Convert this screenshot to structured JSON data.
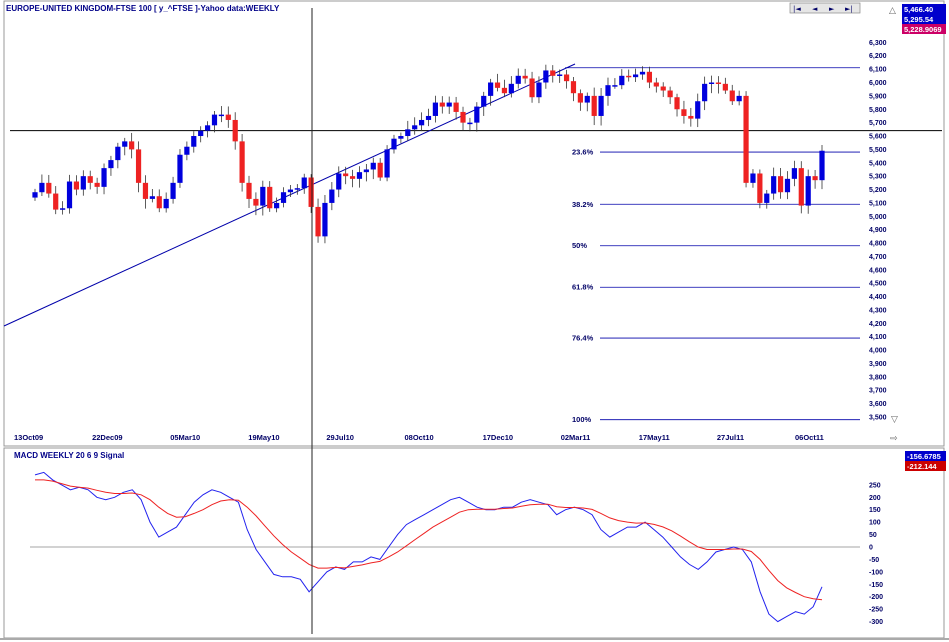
{
  "price_panel": {
    "title": "EUROPE-UNITED KINGDOM-FTSE 100 [ y_^FTSE ]-Yahoo data:WEEKLY",
    "readouts": [
      {
        "text": "5,466.40",
        "bg": "#0000cc"
      },
      {
        "text": "5,295.54",
        "bg": "#0000cc"
      },
      {
        "text": "5,228.9069",
        "bg": "#cc0066"
      }
    ],
    "nav_buttons": [
      "|◄",
      "◄",
      "►",
      "►|"
    ]
  },
  "macd_panel": {
    "title": "MACD WEEKLY 20 6 9 Signal",
    "readouts": [
      {
        "text": "-156.6785",
        "bg": "#0000cc"
      },
      {
        "text": "-212.144",
        "bg": "#cc0000"
      }
    ]
  },
  "colors": {
    "up": "#0000dd",
    "down": "#ee2222",
    "fib": "#0000aa",
    "macd": "#2222ee",
    "signal": "#ee2222"
  },
  "chart_data": [
    {
      "type": "candlestick",
      "title": "EUROPE-UNITED KINGDOM-FTSE 100 [ y_^FTSE ]-Yahoo data:WEEKLY",
      "x_tick_labels": [
        "13Oct09",
        "22Dec09",
        "05Mar10",
        "19May10",
        "29Jul10",
        "08Oct10",
        "17Dec10",
        "02Mar11",
        "17May11",
        "27Jul11",
        "06Oct11"
      ],
      "y_range": [
        3450,
        6400
      ],
      "y_ticks": [
        3500,
        3600,
        3700,
        3800,
        3900,
        4000,
        4100,
        4200,
        4300,
        4400,
        4500,
        4600,
        4700,
        4800,
        4900,
        5000,
        5100,
        5200,
        5300,
        5400,
        5500,
        5600,
        5700,
        5800,
        5900,
        6000,
        6100,
        6200,
        6300
      ],
      "y_tick_labels": [
        "3,500",
        "3,600",
        "3,700",
        "3,800",
        "3,900",
        "4,000",
        "4,100",
        "4,200",
        "4,300",
        "4,400",
        "4,500",
        "4,600",
        "4,700",
        "4,800",
        "4,900",
        "5,000",
        "5,100",
        "5,200",
        "5,300",
        "5,400",
        "5,500",
        "5,600",
        "5,700",
        "5,800",
        "5,900",
        "6,000",
        "6,100",
        "6,200",
        "6,300"
      ],
      "closes": [
        5180,
        5250,
        5170,
        5050,
        5060,
        5260,
        5200,
        5300,
        5250,
        5220,
        5360,
        5420,
        5520,
        5560,
        5500,
        5250,
        5130,
        5150,
        5060,
        5130,
        5250,
        5460,
        5520,
        5600,
        5640,
        5680,
        5760,
        5760,
        5720,
        5560,
        5250,
        5130,
        5080,
        5220,
        5060,
        5100,
        5180,
        5200,
        5210,
        5290,
        5070,
        4850,
        5100,
        5200,
        5320,
        5300,
        5280,
        5330,
        5350,
        5400,
        5290,
        5500,
        5580,
        5600,
        5650,
        5680,
        5720,
        5750,
        5850,
        5820,
        5850,
        5780,
        5700,
        5700,
        5820,
        5900,
        6000,
        5960,
        5920,
        5990,
        6050,
        6030,
        5890,
        6000,
        6090,
        6050,
        6060,
        6010,
        5920,
        5850,
        5900,
        5750,
        5900,
        5980,
        5980,
        6050,
        6040,
        6060,
        6080,
        6000,
        5970,
        5940,
        5890,
        5800,
        5750,
        5730,
        5860,
        5990,
        6000,
        5990,
        5940,
        5860,
        5900,
        5250,
        5320,
        5100,
        5170,
        5300,
        5180,
        5280,
        5360,
        5080,
        5300,
        5270,
        5490
      ],
      "reference_lines": {
        "horizontal_price": 5640,
        "trendline": "rising"
      },
      "fibonacci_levels": [
        {
          "label": "23.6%",
          "value": 5480
        },
        {
          "label": "38.2%",
          "value": 5090
        },
        {
          "label": "50%",
          "value": 4780
        },
        {
          "label": "61.8%",
          "value": 4470
        },
        {
          "label": "76.4%",
          "value": 4090
        },
        {
          "label": "100%",
          "value": 3480
        }
      ]
    },
    {
      "type": "line",
      "title": "MACD WEEKLY 20 6 9 Signal",
      "y_range": [
        -340,
        300
      ],
      "y_ticks": [
        250,
        200,
        150,
        100,
        50,
        0,
        -50,
        -100,
        -150,
        -200,
        -250,
        -300
      ],
      "series": [
        {
          "values": [
            290,
            300,
            270,
            250,
            230,
            240,
            230,
            200,
            190,
            200,
            220,
            230,
            190,
            100,
            40,
            60,
            80,
            130,
            180,
            210,
            230,
            220,
            200,
            180,
            70,
            -10,
            -60,
            -110,
            -120,
            -120,
            -130,
            -180,
            -140,
            -100,
            -80,
            -90,
            -60,
            -60,
            -40,
            -50,
            0,
            50,
            90,
            110,
            130,
            150,
            170,
            190,
            200,
            180,
            160,
            150,
            150,
            160,
            160,
            180,
            190,
            180,
            170,
            130,
            150,
            160,
            150,
            130,
            70,
            40,
            60,
            80,
            80,
            100,
            70,
            40,
            0,
            -40,
            -70,
            -90,
            -60,
            -20,
            -10,
            0,
            -10,
            -60,
            -180,
            -270,
            -300,
            -280,
            -260,
            -270,
            -240,
            -160
          ]
        },
        {
          "values": [
            270,
            270,
            265,
            255,
            245,
            240,
            237,
            228,
            220,
            215,
            215,
            217,
            210,
            190,
            160,
            135,
            120,
            122,
            135,
            150,
            170,
            185,
            190,
            188,
            160,
            125,
            85,
            45,
            10,
            -20,
            -45,
            -70,
            -85,
            -85,
            -82,
            -84,
            -78,
            -72,
            -64,
            -58,
            -40,
            -20,
            5,
            30,
            55,
            80,
            100,
            120,
            140,
            150,
            152,
            152,
            152,
            155,
            157,
            164,
            170,
            172,
            172,
            162,
            159,
            159,
            157,
            151,
            135,
            117,
            106,
            100,
            96,
            97,
            91,
            81,
            65,
            44,
            21,
            0,
            -10,
            -10,
            -10,
            -8,
            -8,
            -18,
            -50,
            -94,
            -135,
            -164,
            -183,
            -200,
            -208,
            -212
          ]
        }
      ]
    }
  ]
}
